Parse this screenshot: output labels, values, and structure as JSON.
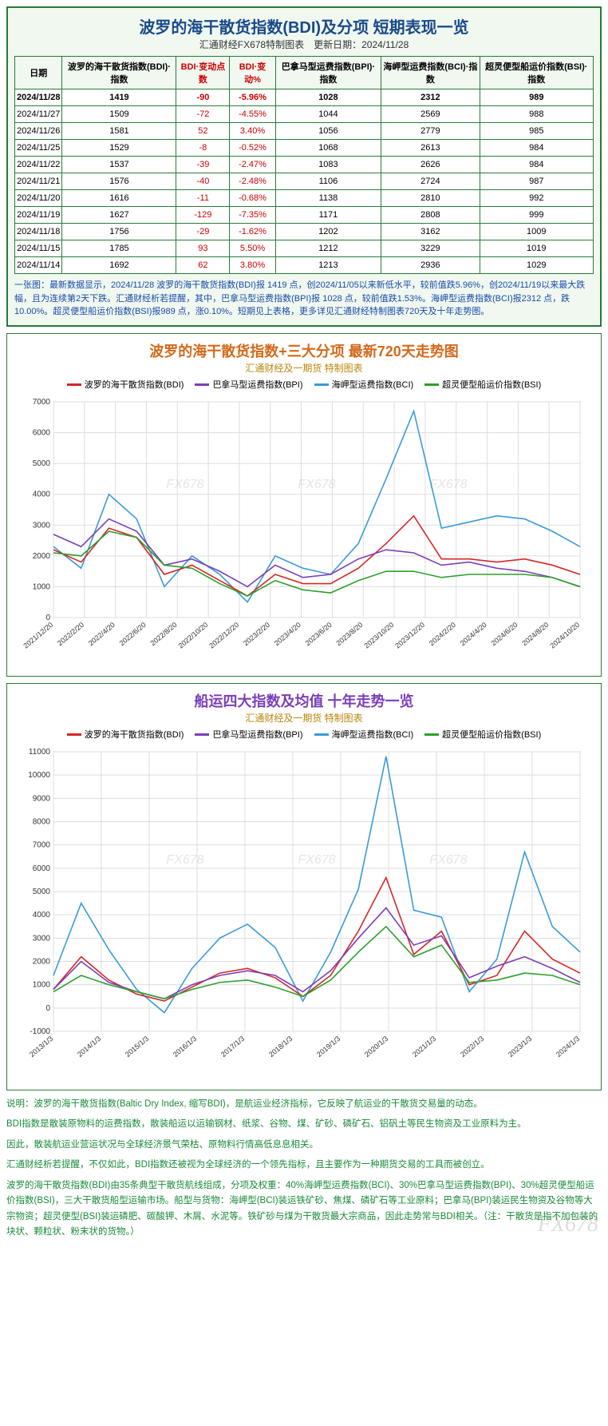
{
  "tablePanel": {
    "title": "波罗的海干散货指数(BDI)及分项 短期表现一览",
    "subtitle": "汇通财经FX678特制图表　更新日期：2024/11/28",
    "columns": [
      "日期",
      "波罗的海干散货指数(BDI)·指数",
      "BDI·变动点数",
      "BDI·变动%",
      "巴拿马型运费指数(BPI)·指数",
      "海岬型运费指数(BCI)·指数",
      "超灵便型船运价指数(BSI)·指数"
    ],
    "redCols": [
      2,
      3
    ],
    "rows": [
      {
        "d": "2024/11/28",
        "bdi": "1419",
        "chg": "-90",
        "pct": "-5.96%",
        "bpi": "1028",
        "bci": "2312",
        "bsi": "989",
        "bold": true
      },
      {
        "d": "2024/11/27",
        "bdi": "1509",
        "chg": "-72",
        "pct": "-4.55%",
        "bpi": "1044",
        "bci": "2569",
        "bsi": "988"
      },
      {
        "d": "2024/11/26",
        "bdi": "1581",
        "chg": "52",
        "pct": "3.40%",
        "bpi": "1056",
        "bci": "2779",
        "bsi": "985"
      },
      {
        "d": "2024/11/25",
        "bdi": "1529",
        "chg": "-8",
        "pct": "-0.52%",
        "bpi": "1068",
        "bci": "2613",
        "bsi": "984"
      },
      {
        "d": "2024/11/22",
        "bdi": "1537",
        "chg": "-39",
        "pct": "-2.47%",
        "bpi": "1083",
        "bci": "2626",
        "bsi": "984"
      },
      {
        "d": "2024/11/21",
        "bdi": "1576",
        "chg": "-40",
        "pct": "-2.48%",
        "bpi": "1106",
        "bci": "2724",
        "bsi": "987"
      },
      {
        "d": "2024/11/20",
        "bdi": "1616",
        "chg": "-11",
        "pct": "-0.68%",
        "bpi": "1138",
        "bci": "2810",
        "bsi": "992"
      },
      {
        "d": "2024/11/19",
        "bdi": "1627",
        "chg": "-129",
        "pct": "-7.35%",
        "bpi": "1171",
        "bci": "2808",
        "bsi": "999"
      },
      {
        "d": "2024/11/18",
        "bdi": "1756",
        "chg": "-29",
        "pct": "-1.62%",
        "bpi": "1202",
        "bci": "3162",
        "bsi": "1009"
      },
      {
        "d": "2024/11/15",
        "bdi": "1785",
        "chg": "93",
        "pct": "5.50%",
        "bpi": "1212",
        "bci": "3229",
        "bsi": "1019"
      },
      {
        "d": "2024/11/14",
        "bdi": "1692",
        "chg": "62",
        "pct": "3.80%",
        "bpi": "1213",
        "bci": "2936",
        "bsi": "1029"
      }
    ],
    "note": "一张图：最新数据显示，2024/11/28 波罗的海干散货指数(BDI)报 1419 点，创2024/11/05以来新低水平，较前值跌5.96%，创2024/11/19以来最大跌幅，且为连续第2天下跌。汇通财经析若提醒，其中，巴拿马型运费指数(BPI)报 1028 点，较前值跌1.53%。海岬型运费指数(BCI)报2312 点，跌10.00%。超灵便型船运价指数(BSI)报989 点，涨0.10%。短期见上表格，更多详见汇通财经特制图表720天及十年走势图。"
  },
  "chart720": {
    "title": "波罗的海干散货指数+三大分项 最新720天走势图",
    "titleColor": "#d4691a",
    "subtitle": "汇通财经及一期货 特制图表",
    "legend": [
      {
        "label": "波罗的海干散货指数(BDI)",
        "color": "#d62728"
      },
      {
        "label": "巴拿马型运费指数(BPI)",
        "color": "#7b3fb8"
      },
      {
        "label": "海岬型运费指数(BCI)",
        "color": "#3a9bd8"
      },
      {
        "label": "超灵便型船运价指数(BSI)",
        "color": "#2ca02c"
      }
    ],
    "ylim": [
      0,
      7000
    ],
    "ytick_step": 1000,
    "xLabels": [
      "2021/12/20",
      "2022/2/20",
      "2022/4/20",
      "2022/6/20",
      "2022/8/20",
      "2022/10/20",
      "2022/12/20",
      "2023/2/20",
      "2023/4/20",
      "2023/6/20",
      "2023/8/20",
      "2023/10/20",
      "2023/12/20",
      "2024/2/20",
      "2024/4/20",
      "2024/6/20",
      "2024/8/20",
      "2024/10/20"
    ],
    "background": "#ffffff",
    "grid_color": "#dddddd",
    "watermark": "FX678",
    "series": {
      "bdi": [
        2200,
        1800,
        2900,
        2600,
        1400,
        1700,
        1200,
        700,
        1400,
        1100,
        1100,
        1600,
        2400,
        3300,
        1900,
        1900,
        1800,
        1900,
        1700,
        1400
      ],
      "bpi": [
        2700,
        2300,
        3200,
        2800,
        1700,
        1900,
        1500,
        1000,
        1700,
        1300,
        1400,
        1900,
        2200,
        2100,
        1700,
        1800,
        1600,
        1500,
        1300,
        1000
      ],
      "bci": [
        2300,
        1600,
        4000,
        3200,
        1000,
        2000,
        1400,
        500,
        2000,
        1600,
        1400,
        2400,
        4500,
        6700,
        2900,
        3100,
        3300,
        3200,
        2800,
        2300
      ],
      "bsi": [
        2100,
        2000,
        2800,
        2600,
        1700,
        1600,
        1100,
        700,
        1200,
        900,
        800,
        1200,
        1500,
        1500,
        1300,
        1400,
        1400,
        1400,
        1300,
        1000
      ]
    }
  },
  "chart10y": {
    "title": "船运四大指数及均值 十年走势一览",
    "titleColor": "#7b3fb8",
    "subtitle": "汇通财经及一期货 特制图表",
    "legend": [
      {
        "label": "波罗的海干散货指数(BDI)",
        "color": "#d62728"
      },
      {
        "label": "巴拿马型运费指数(BPI)",
        "color": "#7b3fb8"
      },
      {
        "label": "海岬型运费指数(BCI)",
        "color": "#3a9bd8"
      },
      {
        "label": "超灵便型船运价指数(BSI)",
        "color": "#2ca02c"
      }
    ],
    "ylim": [
      -1000,
      11000
    ],
    "ytick_step": 1000,
    "xLabels": [
      "2013/1/3",
      "2014/1/3",
      "2015/1/3",
      "2016/1/3",
      "2017/1/3",
      "2018/1/3",
      "2019/1/3",
      "2020/1/3",
      "2021/1/3",
      "2022/1/3",
      "2023/1/3",
      "2024/1/3"
    ],
    "background": "#ffffff",
    "grid_color": "#dddddd",
    "watermark": "FX678",
    "series": {
      "bdi": [
        800,
        2200,
        1200,
        600,
        300,
        900,
        1500,
        1700,
        1300,
        500,
        1400,
        3300,
        5600,
        2300,
        3300,
        1000,
        1400,
        3300,
        2100,
        1500
      ],
      "bpi": [
        800,
        2000,
        1100,
        700,
        400,
        1000,
        1400,
        1600,
        1400,
        700,
        1600,
        3000,
        4300,
        2700,
        3100,
        1300,
        1800,
        2200,
        1700,
        1100
      ],
      "bci": [
        1400,
        4500,
        2500,
        800,
        -200,
        1700,
        3000,
        3600,
        2600,
        300,
        2400,
        5100,
        10800,
        4200,
        3900,
        700,
        2100,
        6700,
        3500,
        2400
      ],
      "bsi": [
        700,
        1400,
        1000,
        700,
        400,
        800,
        1100,
        1200,
        900,
        500,
        1200,
        2400,
        3500,
        2200,
        2700,
        1100,
        1200,
        1500,
        1400,
        1000
      ]
    }
  },
  "explain": {
    "p1": "说明：波罗的海干散货指数(Baltic Dry Index, 缩写BDI)，是航运业经济指标，它反映了航运业的干散货交易量的动态。",
    "p2": "BDI指数是散装原物料的运费指数，散装船运以运输钢材、纸浆、谷物、煤、矿砂、磷矿石、铝矾土等民生物资及工业原料为主。",
    "p3": "因此，散装航运业营运状况与全球经济景气荣枯、原物料行情高低息息相关。",
    "p4": "汇通财经析若提醒，不仅如此，BDI指数还被视为全球经济的一个领先指标，且主要作为一种期货交易的工具而被创立。",
    "p5": "波罗的海干散货指数(BDI)由35条典型干散货航线组成，分项及权重：40%海岬型运费指数(BCI)、30%巴拿马型运费指数(BPI)、30%超灵便型船运价指数(BSI)，三大干散货船型运输市场。船型与货物：海岬型(BCI)装运铁矿砂、焦煤、磷矿石等工业原料；巴拿马(BPI)装运民生物资及谷物等大宗物资；超灵便型(BSI)装运磷肥、碳酸钾、木屑、水泥等。铁矿砂与煤为干散货最大宗商品，因此走势常与BDI相关。（注：干散货是指不加包装的块状、颗粒状、粉末状的货物。）"
  },
  "footerWatermark": "FX678"
}
